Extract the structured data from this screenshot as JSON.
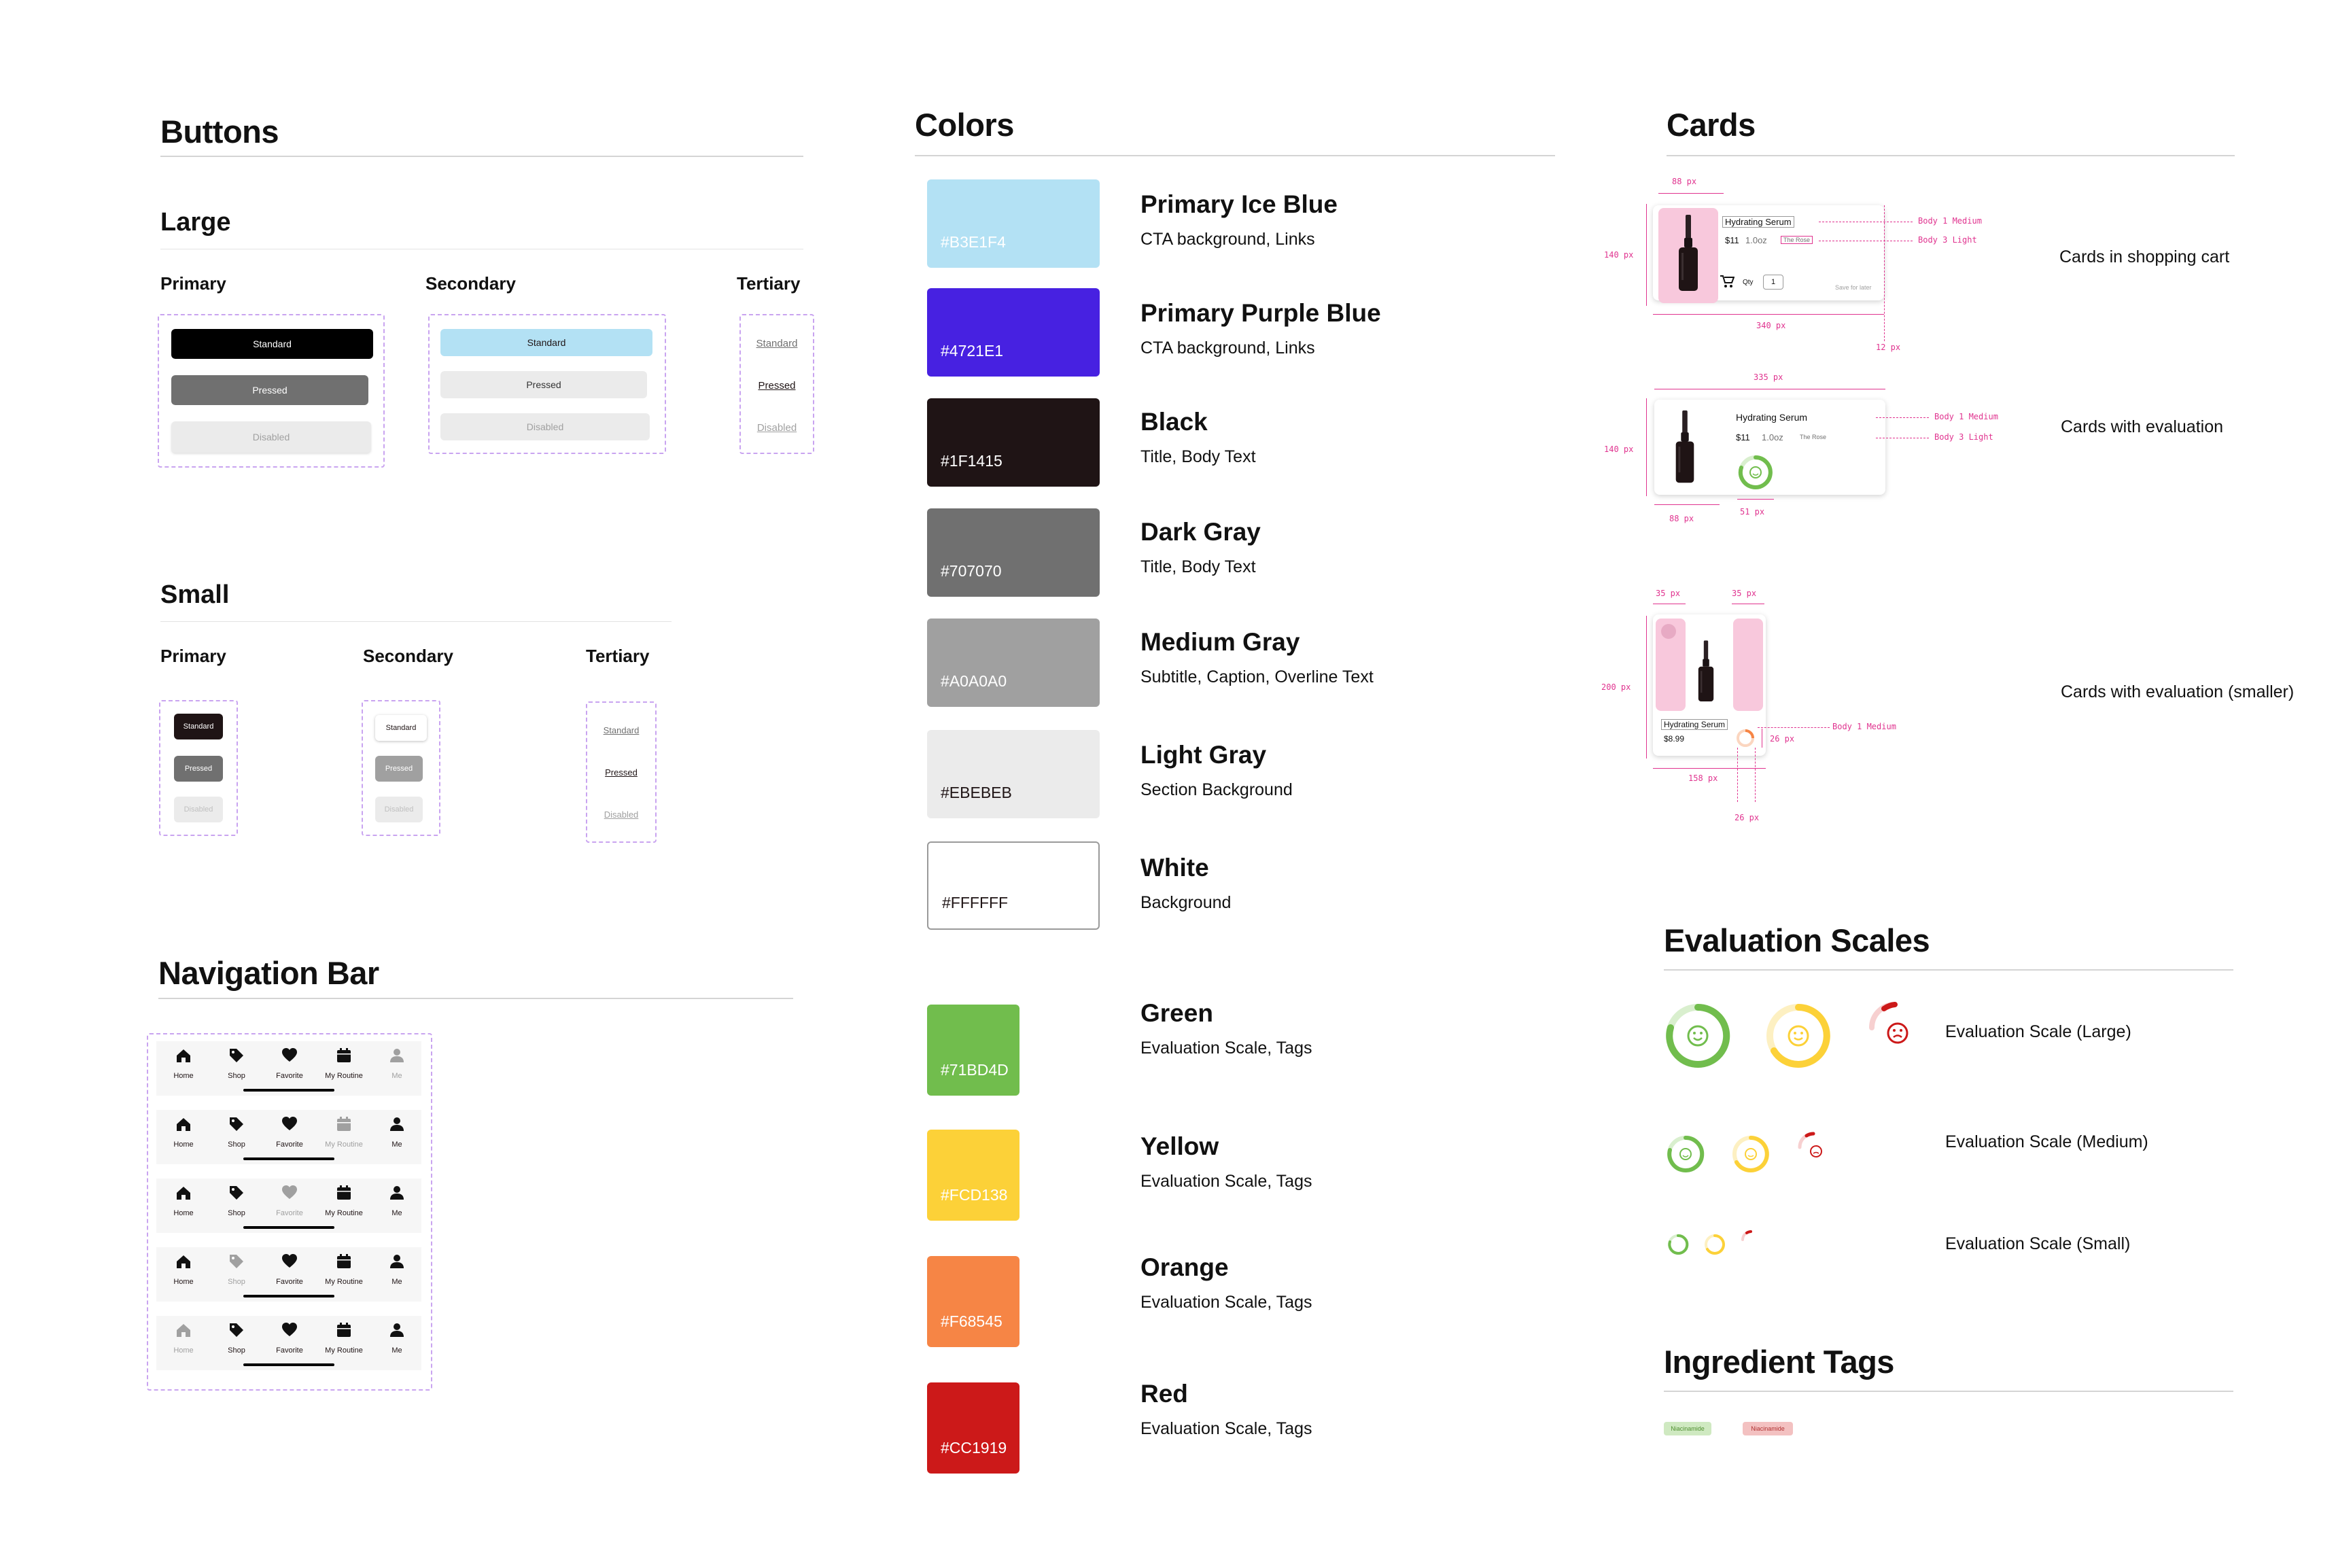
{
  "buttons": {
    "title": "Buttons",
    "large": {
      "title": "Large",
      "primary_label": "Primary",
      "secondary_label": "Secondary",
      "tertiary_label": "Tertiary"
    },
    "small": {
      "title": "Small",
      "primary_label": "Primary",
      "secondary_label": "Secondary",
      "tertiary_label": "Tertiary"
    },
    "states": {
      "standard": "Standard",
      "pressed": "Pressed",
      "disabled": "Disabled"
    }
  },
  "navigation": {
    "title": "Navigation Bar",
    "items": [
      {
        "label": "Home",
        "icon": "home-icon"
      },
      {
        "label": "Shop",
        "icon": "tag-icon"
      },
      {
        "label": "Favorite",
        "icon": "heart-icon"
      },
      {
        "label": "My Routine",
        "icon": "calendar-icon"
      },
      {
        "label": "Me",
        "icon": "person-icon"
      }
    ]
  },
  "colors": {
    "title": "Colors",
    "items": [
      {
        "name": "Primary Ice Blue",
        "hex": "#B3E1F4",
        "usage": "CTA background, Links"
      },
      {
        "name": "Primary Purple Blue",
        "hex": "#4721E1",
        "usage": "CTA background, Links"
      },
      {
        "name": "Black",
        "hex": "#1F1415",
        "usage": "Title, Body Text"
      },
      {
        "name": "Dark Gray",
        "hex": "#707070",
        "usage": "Title, Body Text"
      },
      {
        "name": "Medium Gray",
        "hex": "#A0A0A0",
        "usage": "Subtitle, Caption, Overline Text"
      },
      {
        "name": "Light Gray",
        "hex": "#EBEBEB",
        "usage": "Section Background"
      },
      {
        "name": "White",
        "hex": "#FFFFFF",
        "usage": "Background"
      },
      {
        "name": "Green",
        "hex": "#71BD4D",
        "usage": "Evaluation Scale, Tags"
      },
      {
        "name": "Yellow",
        "hex": "#FCD138",
        "usage": "Evaluation Scale, Tags"
      },
      {
        "name": "Orange",
        "hex": "#F68545",
        "usage": "Evaluation Scale, Tags"
      },
      {
        "name": "Red",
        "hex": "#CC1919",
        "usage": "Evaluation Scale, Tags"
      }
    ]
  },
  "cards": {
    "title": "Cards",
    "shopping": {
      "label": "Cards in shopping cart",
      "product": "Hydrating Serum",
      "price": "$11",
      "size": "1.0oz",
      "brand": "The Rose",
      "qty_label": "Qty",
      "qty_value": "1",
      "save_later": "Save for later",
      "dim_width_img": "88 px",
      "dim_height": "140 px",
      "dim_width": "340 px",
      "dim_edge": "12 px",
      "note_title": "Body 1 Medium",
      "note_body": "Body 3 Light"
    },
    "evaluation": {
      "label": "Cards with evaluation",
      "product": "Hydrating Serum",
      "price": "$11",
      "size": "1.0oz",
      "brand": "The Rose",
      "dim_width": "335 px",
      "dim_height": "140 px",
      "dim_img": "88 px",
      "dim_scale": "51 px",
      "note_title": "Body 1 Medium",
      "note_body": "Body 3 Light"
    },
    "smaller": {
      "label": "Cards with evaluation (smaller)",
      "product": "Hydrating Serum",
      "price": "$8.99",
      "dim_left": "35 px",
      "dim_right": "35 px",
      "dim_height": "200 px",
      "dim_width": "158 px",
      "dim_scale_h": "26 px",
      "dim_scale_w": "26 px",
      "note_title": "Body 1 Medium"
    }
  },
  "scales": {
    "title": "Evaluation Scales",
    "large": "Evaluation Scale (Large)",
    "medium": "Evaluation Scale (Medium)",
    "small": "Evaluation Scale (Small)"
  },
  "tags": {
    "title": "Ingredient Tags",
    "items": [
      "Niacinamide",
      "Niacinamide"
    ]
  }
}
